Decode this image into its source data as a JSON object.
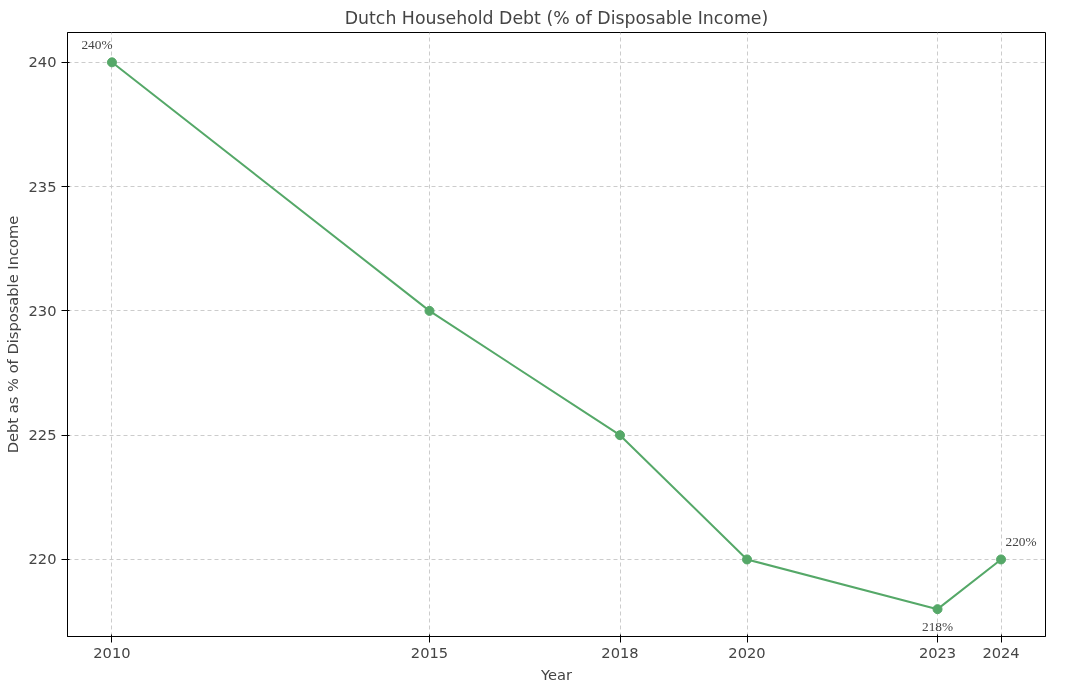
{
  "chart_data": {
    "type": "line",
    "title": "Dutch Household Debt (% of Disposable Income)",
    "xlabel": "Year",
    "ylabel": "Debt as % of Disposable Income",
    "x": [
      2010,
      2015,
      2018,
      2020,
      2023,
      2024
    ],
    "series": [
      {
        "color": "#55a868",
        "values": [
          240,
          230,
          225,
          220,
          218,
          220
        ],
        "value_labels": [
          "240%",
          null,
          null,
          null,
          "218%",
          "220%"
        ]
      }
    ],
    "xlim": [
      2009.3,
      2024.7
    ],
    "ylim": [
      216.9,
      241.2
    ],
    "xticks": [
      2010,
      2015,
      2018,
      2020,
      2023,
      2024
    ],
    "yticks": [
      220,
      225,
      230,
      235,
      240
    ],
    "grid": true,
    "marker": "circle",
    "line_style": "solid"
  }
}
